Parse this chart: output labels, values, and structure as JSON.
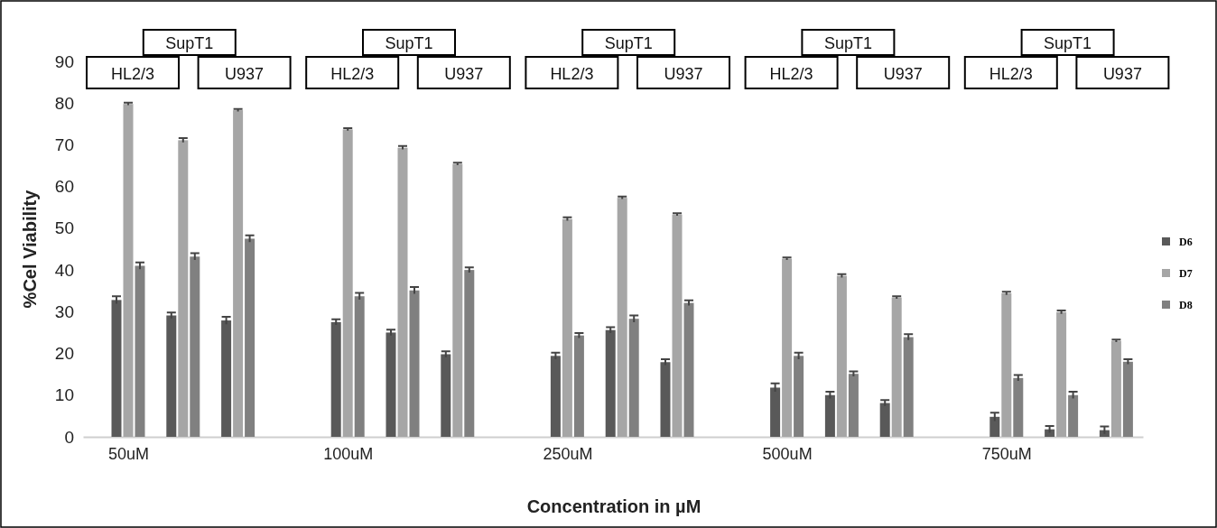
{
  "chart_data": {
    "type": "bar",
    "xlabel": "Concentration in µM",
    "ylabel": "%Cel Viability",
    "categories": [
      "50uM",
      null,
      null,
      null,
      "100uM",
      null,
      null,
      null,
      "250uM",
      null,
      null,
      null,
      "500uM",
      null,
      null,
      null,
      "750uM",
      null,
      null
    ],
    "series": [
      {
        "name": "D6",
        "color": "#595959",
        "values": [
          32.8,
          29.1,
          27.9,
          null,
          27.5,
          25.0,
          19.8,
          null,
          19.4,
          25.6,
          17.9,
          null,
          11.8,
          10.0,
          8.1,
          null,
          4.8,
          1.8,
          1.6
        ],
        "errors": [
          0.9,
          0.7,
          0.9,
          null,
          0.7,
          0.7,
          0.7,
          null,
          0.8,
          0.7,
          0.7,
          null,
          1.0,
          0.8,
          0.7,
          null,
          1.0,
          0.8,
          0.9
        ]
      },
      {
        "name": "D7",
        "color": "#a6a6a6",
        "values": [
          79.8,
          71.1,
          78.3,
          null,
          73.7,
          69.3,
          65.4,
          null,
          52.2,
          57.3,
          53.3,
          null,
          42.7,
          38.6,
          33.4,
          null,
          34.4,
          29.9,
          23.0
        ],
        "errors": [
          0.3,
          0.5,
          0.3,
          null,
          0.3,
          0.4,
          0.3,
          null,
          0.4,
          0.3,
          0.3,
          null,
          0.3,
          0.4,
          0.3,
          null,
          0.4,
          0.4,
          0.3
        ]
      },
      {
        "name": "D8",
        "color": "#808080",
        "values": [
          41.0,
          43.2,
          47.5,
          null,
          33.7,
          35.1,
          40.0,
          null,
          24.3,
          28.3,
          32.1,
          null,
          19.4,
          15.1,
          23.9,
          null,
          14.1,
          10.0,
          18.0
        ],
        "errors": [
          0.8,
          0.8,
          0.8,
          null,
          0.8,
          0.8,
          0.6,
          null,
          0.6,
          0.8,
          0.6,
          null,
          0.8,
          0.6,
          0.7,
          null,
          0.7,
          0.8,
          0.6
        ]
      }
    ],
    "ylim": [
      0,
      90
    ],
    "yticks": [
      0,
      10,
      20,
      30,
      40,
      50,
      60,
      70,
      80,
      90
    ],
    "grid": false,
    "legend": "right",
    "annotations": [
      "HL2/3",
      "SupT1",
      "U937",
      "HL2/3",
      "SupT1",
      "U937",
      "HL2/3",
      "SupT1",
      "U937",
      "HL2/3",
      "SupT1",
      "U937",
      "HL2/3",
      "SupT1",
      "U937"
    ]
  }
}
